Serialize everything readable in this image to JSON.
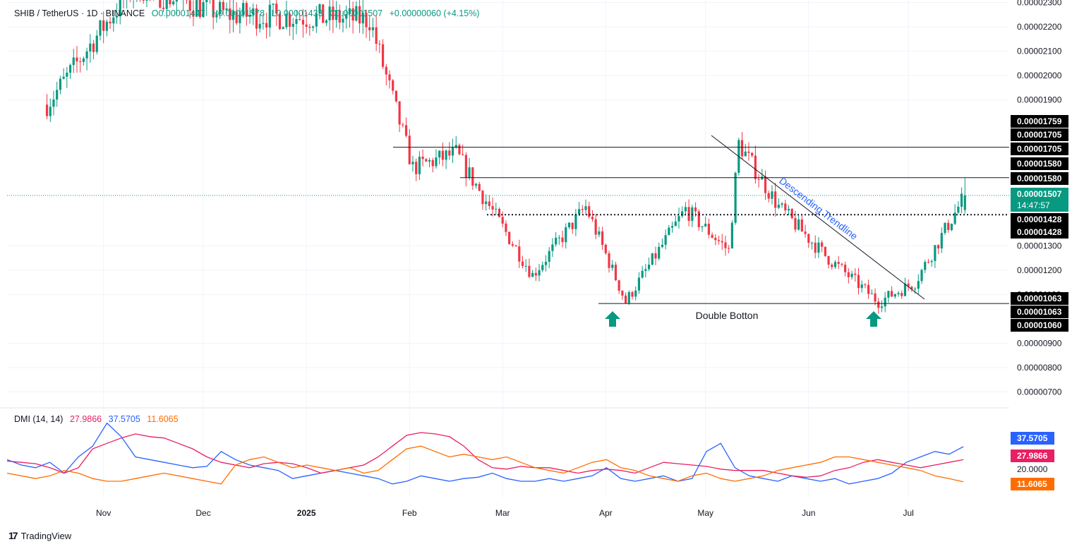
{
  "legend": {
    "symbol": "SHIB / TetherUS · 1D · BINANCE",
    "open": "O0.00001447",
    "high": "H0.00001578",
    "low": "L0.00001433",
    "close": "C0.00001507",
    "change": "+0.00000060 (+4.15%)"
  },
  "dmi_legend": {
    "label": "DMI (14, 14)",
    "adx": "27.9866",
    "plus_di": "37.5705",
    "minus_di": "11.6065"
  },
  "brand": {
    "name": "TradingView",
    "icon": "tradingview-logo-icon"
  },
  "colors": {
    "up": "#089981",
    "down": "#f23645",
    "plus_di": "#2962ff",
    "adx": "#e91e63",
    "minus_di": "#ff6d00",
    "grid": "#f0f3fa"
  },
  "chart_data": {
    "type": "candlestick",
    "x_ticks": [
      "Nov",
      "Dec",
      "2025",
      "Feb",
      "Mar",
      "Apr",
      "May",
      "Jun",
      "Jul"
    ],
    "y_ticks": [
      "0.00002300",
      "0.00002200",
      "0.00002100",
      "0.00002000",
      "0.00001900",
      "0.00001300",
      "0.00001200",
      "0.00001100",
      "0.00000900",
      "0.00000800",
      "0.00000700"
    ],
    "ylim": [
      6.4e-06,
      2.31e-05
    ],
    "price_labels": [
      {
        "text": "0.00001759",
        "style": "black"
      },
      {
        "text": "0.00001705",
        "style": "black"
      },
      {
        "text": "0.00001705",
        "style": "black"
      },
      {
        "text": "0.00001580",
        "style": "black"
      },
      {
        "text": "0.00001580",
        "style": "black"
      },
      {
        "text": "0.00001507",
        "sub": "14:47:57",
        "style": "green"
      },
      {
        "text": "0.00001428",
        "style": "black"
      },
      {
        "text": "0.00001428",
        "style": "black"
      },
      {
        "text": "0.00001063",
        "style": "black"
      },
      {
        "text": "0.00001063",
        "style": "black"
      },
      {
        "text": "0.00001060",
        "style": "black"
      }
    ],
    "annotations": {
      "trendline_label": "Descending Trendline",
      "pattern_label": "Double Botton",
      "resistance_1": 1.705e-05,
      "resistance_2": 1.58e-05,
      "support_dotted": 1.428e-05,
      "bottom_line": 1.063e-05
    },
    "key_points": [
      {
        "date": "2024-10-15",
        "price": 1.88e-05
      },
      {
        "date": "2024-11-10",
        "price": 2.37e-05
      },
      {
        "date": "2024-12-08",
        "price": 2.25e-05
      },
      {
        "date": "2025-01-20",
        "price": 2.23e-05
      },
      {
        "date": "2025-02-02",
        "price": 1.62e-05
      },
      {
        "date": "2025-02-15",
        "price": 1.68e-05
      },
      {
        "date": "2025-03-10",
        "price": 1.18e-05
      },
      {
        "date": "2025-03-26",
        "price": 1.46e-05
      },
      {
        "date": "2025-04-07",
        "price": 1.07e-05
      },
      {
        "date": "2025-04-25",
        "price": 1.45e-05
      },
      {
        "date": "2025-05-08",
        "price": 1.28e-05
      },
      {
        "date": "2025-05-11",
        "price": 1.72e-05
      },
      {
        "date": "2025-05-23",
        "price": 1.46e-05
      },
      {
        "date": "2025-06-06",
        "price": 1.26e-05
      },
      {
        "date": "2025-06-22",
        "price": 1.07e-05
      },
      {
        "date": "2025-07-03",
        "price": 1.15e-05
      },
      {
        "date": "2025-07-18",
        "price": 1.507e-05
      }
    ],
    "dmi": {
      "ylim": [
        0,
        60
      ],
      "y_ticks": [
        "20.0000"
      ],
      "labels": [
        {
          "text": "37.5705",
          "color": "#2962ff"
        },
        {
          "text": "27.9866",
          "color": "#e91e63"
        },
        {
          "text": "20.0000",
          "color": "none"
        },
        {
          "text": "11.6065",
          "color": "#ff6d00"
        }
      ],
      "plus_di_key": [
        28,
        24,
        22,
        26,
        18,
        30,
        38,
        55,
        45,
        30,
        28,
        26,
        24,
        22,
        23,
        34,
        28,
        24,
        22,
        20,
        14,
        16,
        18,
        20,
        18,
        16,
        14,
        10,
        12,
        16,
        14,
        12,
        14,
        15,
        18,
        14,
        12,
        12,
        14,
        12,
        14,
        16,
        22,
        14,
        12,
        14,
        16,
        12,
        14,
        34,
        40,
        22,
        16,
        14,
        12,
        16,
        14,
        12,
        14,
        10,
        12,
        14,
        18,
        26,
        30,
        34,
        32,
        37.5705
      ],
      "adx_key": [
        27,
        26,
        25,
        22,
        18,
        22,
        36,
        40,
        44,
        47,
        45,
        44,
        40,
        36,
        30,
        26,
        24,
        22,
        25,
        26,
        25,
        22,
        18,
        20,
        22,
        24,
        30,
        38,
        46,
        48,
        47,
        45,
        38,
        28,
        22,
        21,
        23,
        22,
        22,
        20,
        18,
        20,
        21,
        20,
        18,
        22,
        26,
        25,
        24,
        23,
        21,
        20,
        20,
        20,
        18,
        16,
        15,
        16,
        20,
        22,
        26,
        28,
        26,
        24,
        22,
        24,
        26,
        27.9866
      ],
      "minus_di_key": [
        18,
        16,
        14,
        16,
        20,
        18,
        14,
        12,
        12,
        14,
        16,
        18,
        16,
        14,
        12,
        10,
        24,
        28,
        30,
        26,
        22,
        24,
        22,
        20,
        22,
        18,
        20,
        28,
        36,
        38,
        34,
        30,
        32,
        30,
        28,
        30,
        26,
        22,
        20,
        18,
        22,
        26,
        28,
        22,
        20,
        16,
        14,
        12,
        16,
        18,
        14,
        12,
        14,
        16,
        20,
        22,
        24,
        26,
        30,
        30,
        28,
        26,
        24,
        22,
        20,
        16,
        14,
        11.6065
      ]
    }
  }
}
